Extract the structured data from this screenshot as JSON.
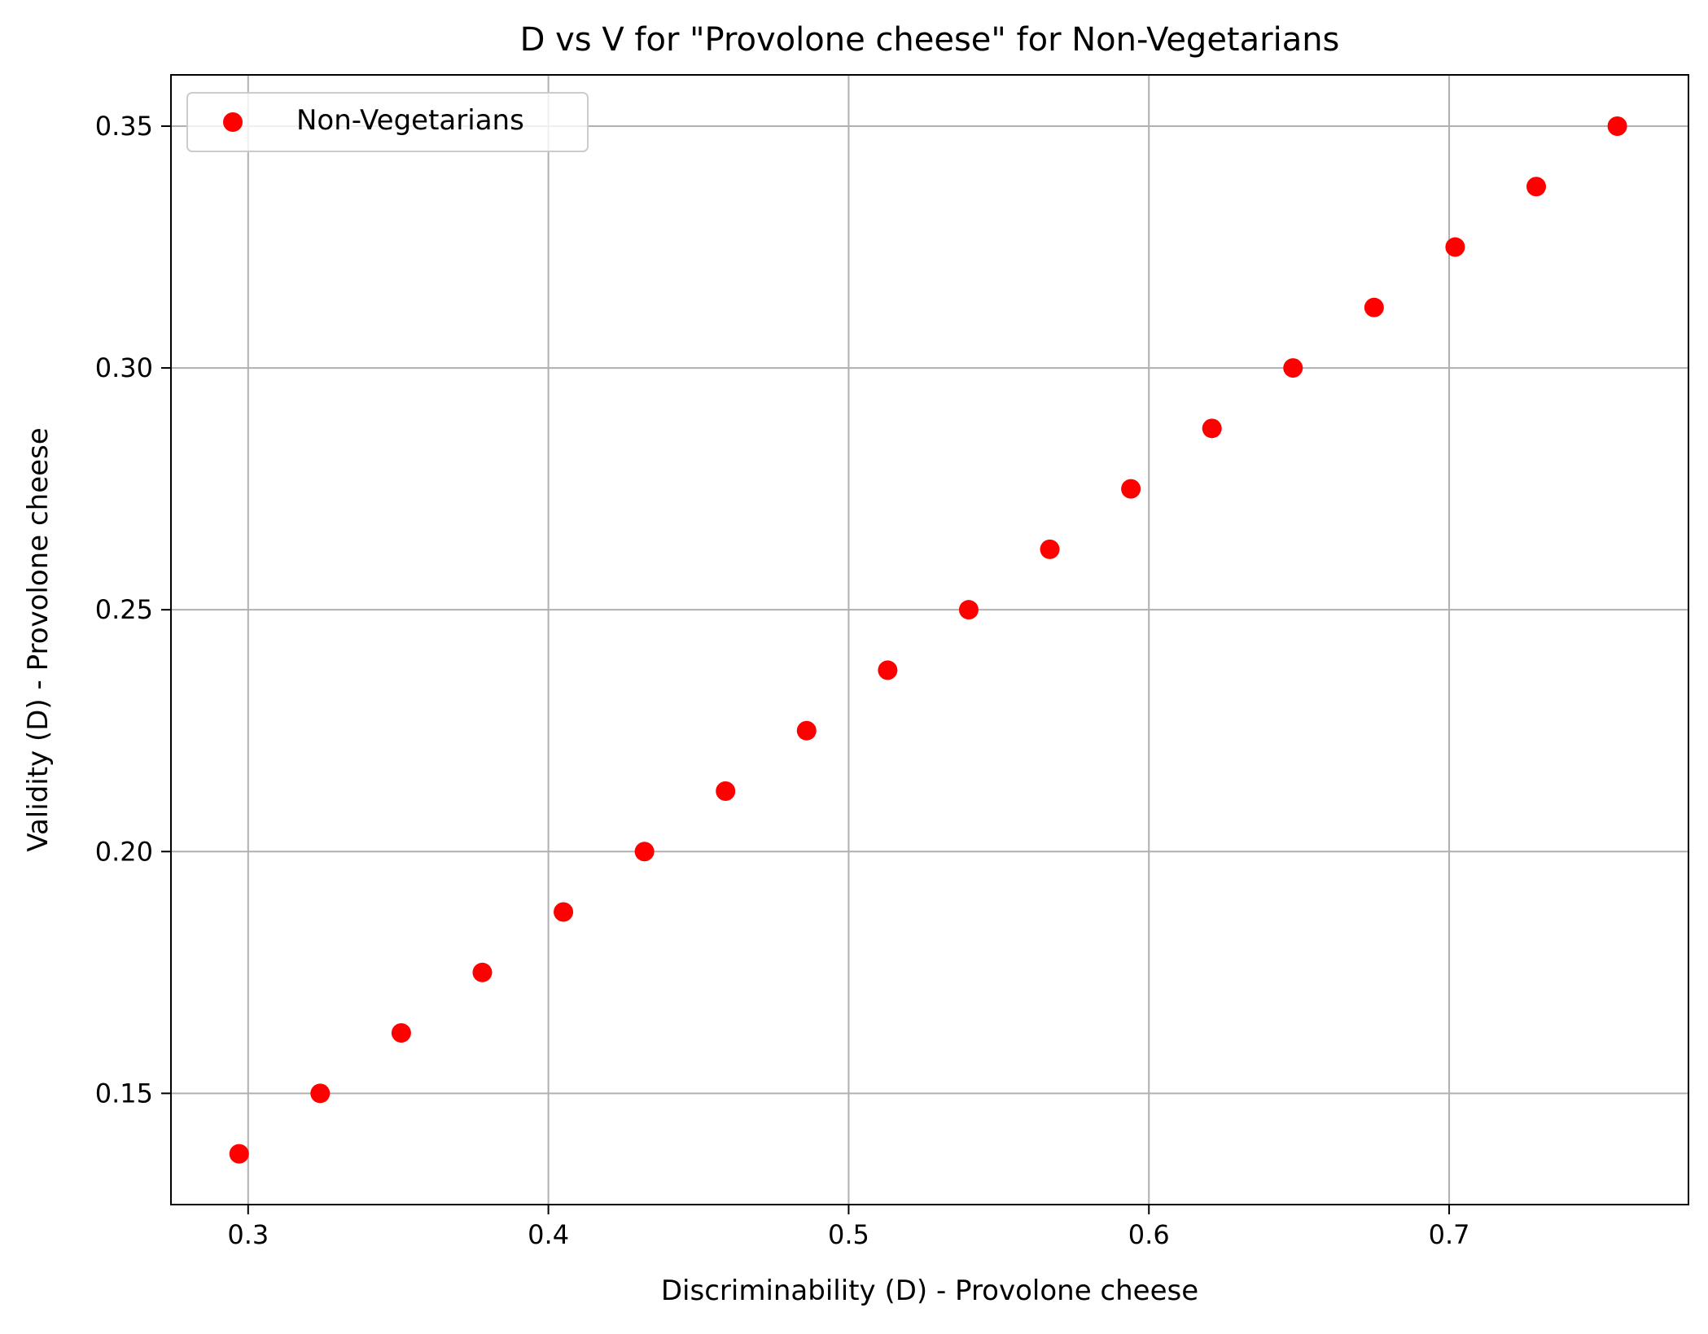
{
  "chart_data": {
    "type": "scatter",
    "title": "D vs V for \"Provolone cheese\" for Non-Vegetarians",
    "xlabel": "Discriminability (D) - Provolone cheese",
    "ylabel": "Validity (D) - Provolone cheese",
    "xlim": [
      0.2743,
      0.7797
    ],
    "ylim": [
      0.127,
      0.3606
    ],
    "xticks": [
      0.3,
      0.4,
      0.5,
      0.6,
      0.7
    ],
    "xtick_labels": [
      "0.3",
      "0.4",
      "0.5",
      "0.6",
      "0.7"
    ],
    "yticks": [
      0.15,
      0.2,
      0.25,
      0.3,
      0.35
    ],
    "ytick_labels": [
      "0.15",
      "0.20",
      "0.25",
      "0.30",
      "0.35"
    ],
    "grid": true,
    "legend_position": "top-left",
    "series": [
      {
        "name": "Non-Vegetarians",
        "color": "#ff0000",
        "points": [
          {
            "x": 0.297,
            "y": 0.1375
          },
          {
            "x": 0.324,
            "y": 0.15
          },
          {
            "x": 0.351,
            "y": 0.1625
          },
          {
            "x": 0.378,
            "y": 0.175
          },
          {
            "x": 0.405,
            "y": 0.1875
          },
          {
            "x": 0.432,
            "y": 0.2
          },
          {
            "x": 0.459,
            "y": 0.2125
          },
          {
            "x": 0.486,
            "y": 0.225
          },
          {
            "x": 0.513,
            "y": 0.2375
          },
          {
            "x": 0.54,
            "y": 0.25
          },
          {
            "x": 0.567,
            "y": 0.2625
          },
          {
            "x": 0.594,
            "y": 0.275
          },
          {
            "x": 0.621,
            "y": 0.2875
          },
          {
            "x": 0.648,
            "y": 0.3
          },
          {
            "x": 0.675,
            "y": 0.3125
          },
          {
            "x": 0.702,
            "y": 0.325
          },
          {
            "x": 0.729,
            "y": 0.3375
          },
          {
            "x": 0.756,
            "y": 0.35
          }
        ]
      }
    ]
  }
}
